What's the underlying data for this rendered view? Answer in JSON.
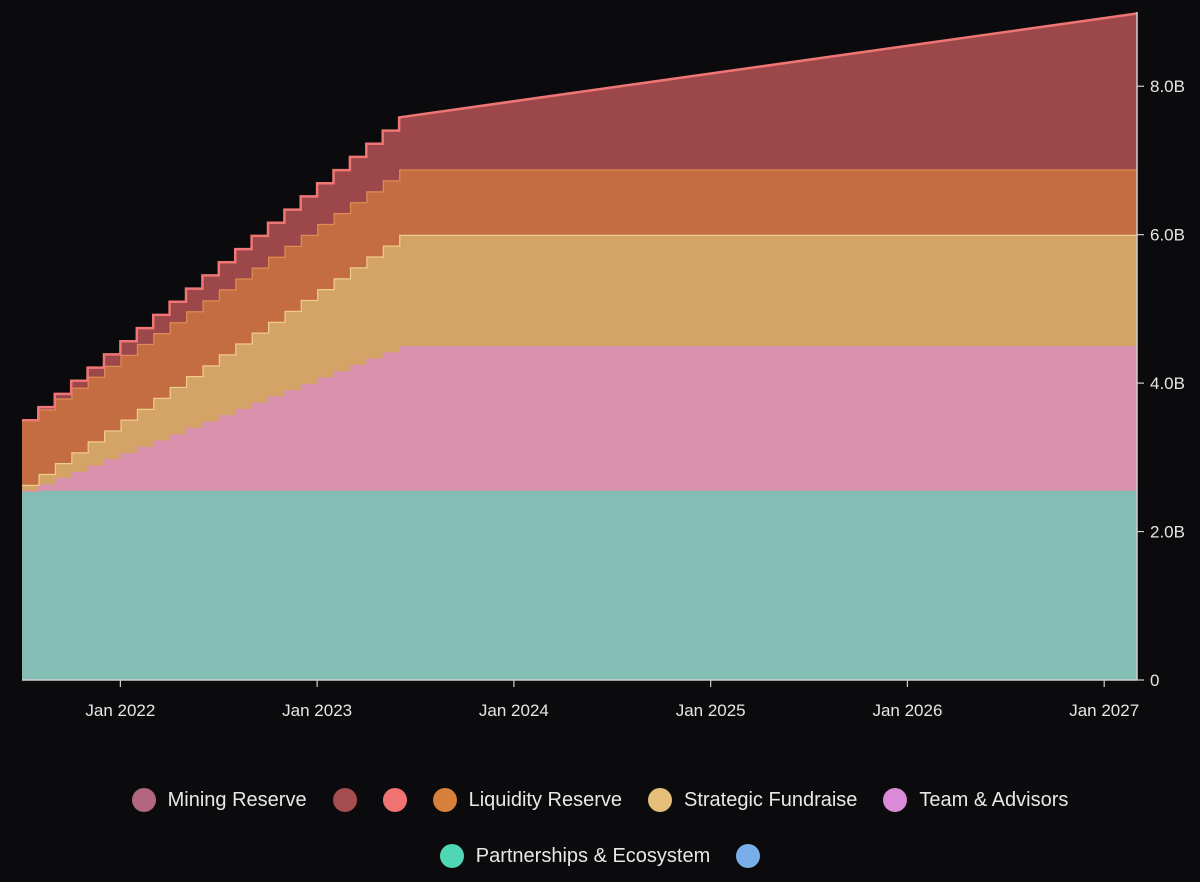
{
  "chart_data": {
    "type": "area",
    "stacked": true,
    "title": "",
    "xlabel": "",
    "ylabel": "",
    "x_range": [
      "2021-07",
      "2027-03"
    ],
    "ylim": [
      0,
      9000000000
    ],
    "x_ticks": [
      "Jan 2022",
      "Jan 2023",
      "Jan 2024",
      "Jan 2025",
      "Jan 2026",
      "Jan 2027"
    ],
    "y_ticks": [
      "0",
      "2.0B",
      "4.0B",
      "6.0B",
      "8.0B"
    ],
    "x_dates": [
      "2021-07",
      "2023-06",
      "2027-03"
    ],
    "series": [
      {
        "name": "Partnerships & Ecosystem",
        "color": "#84bdb3",
        "values": [
          2.55,
          2.55,
          2.55
        ]
      },
      {
        "name": "Team & Advisors",
        "color": "#d991ae",
        "values": [
          0.0,
          1.95,
          1.95
        ]
      },
      {
        "name": "Strategic Fundraise",
        "color": "#d4a366",
        "values": [
          0.08,
          1.5,
          1.5
        ]
      },
      {
        "name": "Liquidity Reserve",
        "color": "#c46d42",
        "values": [
          0.87,
          0.88,
          0.88
        ]
      },
      {
        "name": "",
        "color": "#9c484a",
        "values": [
          0.0,
          0.7,
          2.1
        ]
      }
    ],
    "legend": [
      {
        "label": "Mining Reserve",
        "color": "#b36680"
      },
      {
        "label": "",
        "color": "#a54d4f"
      },
      {
        "label": "",
        "color": "#f07272"
      },
      {
        "label": "Liquidity Reserve",
        "color": "#d97f3c"
      },
      {
        "label": "Strategic Fundraise",
        "color": "#e6c07a"
      },
      {
        "label": "Team & Advisors",
        "color": "#d98ad9"
      },
      {
        "label": "Partnerships & Ecosystem",
        "color": "#4fd6b3"
      },
      {
        "label": "",
        "color": "#7aaee8"
      }
    ]
  }
}
